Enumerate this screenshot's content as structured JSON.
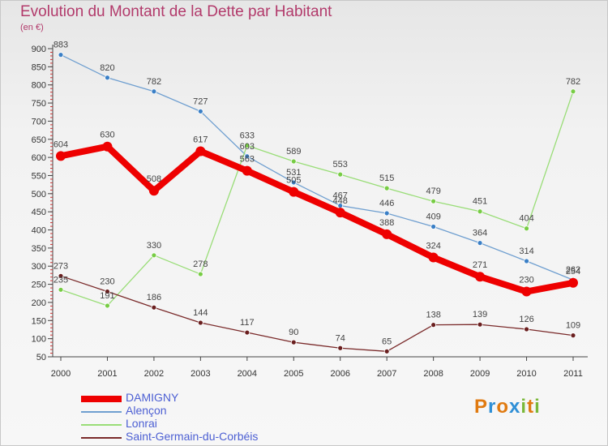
{
  "header": {
    "title": "Evolution du Montant de la Dette par Habitant",
    "unit": "(en €)"
  },
  "logo": {
    "letters": [
      "P",
      "r",
      "o",
      "x",
      "i",
      "t",
      "i"
    ],
    "colors": [
      "#e07a10",
      "#2f8fd6",
      "#e07a10",
      "#2f8fd6",
      "#7ab83a",
      "#e07a10",
      "#7ab83a"
    ]
  },
  "chart_data": {
    "type": "line",
    "title": "Evolution du Montant de la Dette par Habitant",
    "ylabel": "(en €)",
    "xlabel": "",
    "x": [
      "2000",
      "2001",
      "2002",
      "2003",
      "2004",
      "2005",
      "2006",
      "2007",
      "2008",
      "2009",
      "2010",
      "2011"
    ],
    "ylim": [
      50,
      900
    ],
    "yticks": [
      50,
      100,
      150,
      200,
      250,
      300,
      350,
      400,
      450,
      500,
      550,
      600,
      650,
      700,
      750,
      800,
      850,
      900
    ],
    "grid": false,
    "legend": "bottom-left",
    "series": [
      {
        "name": "DAMIGNY",
        "color": "#ee0000",
        "marker": "#ee0000",
        "width": "thick",
        "values": [
          604,
          630,
          508,
          617,
          563,
          505,
          448,
          388,
          324,
          271,
          230,
          254
        ]
      },
      {
        "name": "Alençon",
        "color": "#6f9fd0",
        "marker": "#3a7fc6",
        "width": "thin",
        "values": [
          883,
          820,
          782,
          727,
          603,
          531,
          467,
          446,
          409,
          364,
          314,
          262
        ]
      },
      {
        "name": "Lonrai",
        "color": "#99dd77",
        "marker": "#77cc44",
        "width": "thin",
        "values": [
          235,
          191,
          330,
          278,
          633,
          589,
          553,
          515,
          479,
          451,
          404,
          782
        ]
      },
      {
        "name": "Saint-Germain-du-Corbéis",
        "color": "#7a2a2a",
        "marker": "#6a1f1f",
        "width": "thin",
        "values": [
          273,
          230,
          186,
          144,
          117,
          90,
          74,
          65,
          138,
          139,
          126,
          109
        ]
      }
    ]
  }
}
